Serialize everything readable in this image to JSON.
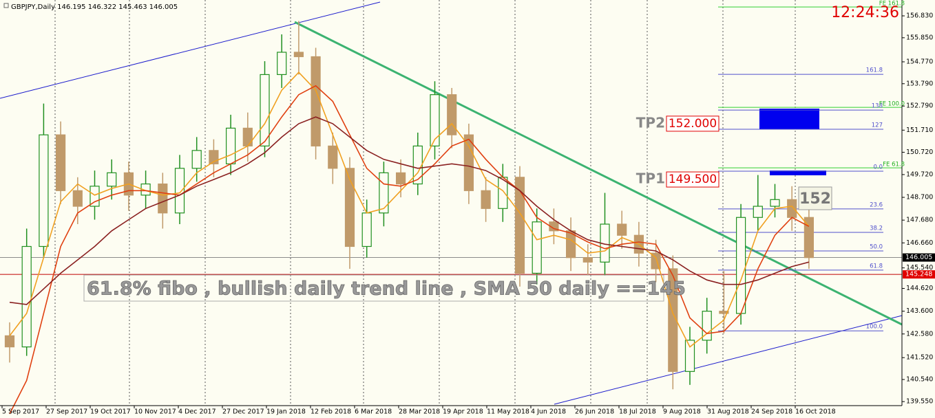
{
  "chart_data": {
    "type": "candlestick",
    "header": "GBPJPY,Daily  146.195 146.322 145.463 146.005",
    "clock": "12:24:36",
    "categories": [
      "5 Sep 2017",
      "27 Sep 2017",
      "19 Oct 2017",
      "10 Nov 2017",
      "4 Dec 2017",
      "27 Dec 2017",
      "19 Jan 2018",
      "12 Feb 2018",
      "6 Mar 2018",
      "28 Mar 2018",
      "19 Apr 2018",
      "11 May 2018",
      "4 Jun 2018",
      "26 Jun 2018",
      "18 Jul 2018",
      "9 Aug 2018",
      "31 Aug 2018",
      "24 Sep 2018",
      "16 Oct 2018"
    ],
    "open": [
      142.5,
      142.0,
      146.5,
      151.5,
      149.0,
      148.3,
      149.2,
      149.8,
      148.8,
      149.3,
      148.0,
      150.0,
      150.8,
      150.2,
      151.8,
      151.0,
      154.2,
      155.2,
      155.0,
      151.0,
      150.0,
      146.5,
      148.0,
      149.8,
      149.3,
      151.0,
      153.3,
      151.5,
      149.0,
      148.2,
      149.6,
      145.3,
      147.6,
      147.2,
      146.0,
      145.8,
      147.5,
      147.0,
      146.2,
      145.5,
      140.9,
      142.3,
      143.6,
      143.5,
      147.8,
      148.3,
      148.6,
      147.8
    ],
    "high": [
      143.1,
      147.3,
      152.9,
      152.1,
      149.6,
      149.9,
      150.4,
      150.3,
      149.9,
      149.8,
      150.6,
      151.4,
      151.3,
      152.4,
      152.5,
      154.8,
      156.0,
      156.6,
      155.4,
      151.6,
      150.5,
      148.6,
      150.3,
      150.4,
      151.6,
      153.9,
      153.6,
      152.0,
      149.6,
      150.2,
      150.1,
      148.2,
      148.2,
      147.8,
      146.6,
      148.9,
      148.1,
      147.6,
      146.8,
      146.1,
      142.9,
      144.2,
      145.4,
      148.4,
      149.7,
      149.3,
      149.2,
      148.4
    ],
    "low": [
      141.3,
      141.6,
      146.0,
      148.4,
      147.5,
      147.7,
      148.6,
      148.1,
      148.2,
      147.3,
      147.5,
      149.4,
      149.6,
      149.7,
      150.3,
      150.5,
      153.6,
      154.2,
      150.4,
      149.3,
      145.5,
      146.0,
      147.4,
      148.7,
      148.8,
      150.4,
      150.9,
      148.4,
      147.6,
      147.6,
      144.7,
      144.8,
      146.6,
      145.4,
      145.2,
      145.2,
      146.4,
      145.6,
      144.9,
      140.1,
      140.3,
      141.7,
      142.6,
      143.0,
      147.2,
      147.8,
      147.2,
      145.5
    ],
    "close": [
      142.0,
      146.5,
      151.5,
      149.0,
      148.3,
      149.2,
      149.8,
      148.8,
      149.3,
      148.0,
      150.0,
      150.8,
      150.2,
      151.8,
      151.0,
      154.2,
      155.2,
      155.0,
      151.0,
      150.0,
      146.5,
      148.0,
      149.8,
      149.3,
      151.0,
      153.3,
      151.5,
      149.0,
      148.2,
      149.6,
      145.3,
      147.6,
      147.2,
      146.0,
      145.8,
      147.5,
      147.0,
      146.2,
      145.5,
      140.9,
      142.3,
      143.6,
      143.5,
      147.8,
      148.3,
      148.6,
      147.8,
      146.0
    ],
    "up_color": "#1f8f1f",
    "down_color": "#c09a6a",
    "moving_averages": [
      {
        "color": "#f0a020",
        "values": [
          142.5,
          143.5,
          146.0,
          148.5,
          149.3,
          148.8,
          149.1,
          149.3,
          149.0,
          148.8,
          148.9,
          149.8,
          150.3,
          150.6,
          151.0,
          152.0,
          153.5,
          154.3,
          153.5,
          151.5,
          149.5,
          148.0,
          148.2,
          149.0,
          149.8,
          151.3,
          152.0,
          151.0,
          149.5,
          149.0,
          148.0,
          146.8,
          147.0,
          146.8,
          146.2,
          146.3,
          146.9,
          146.6,
          146.0,
          143.5,
          142.0,
          142.6,
          143.2,
          145.0,
          147.2,
          148.2,
          148.3,
          147.4
        ]
      },
      {
        "color": "#e04010",
        "values": [
          139.0,
          140.5,
          143.5,
          146.5,
          148.0,
          148.5,
          148.8,
          149.0,
          149.0,
          148.9,
          148.8,
          149.3,
          149.8,
          150.2,
          150.6,
          151.2,
          152.3,
          153.3,
          153.7,
          153.0,
          151.5,
          150.0,
          149.3,
          149.2,
          149.5,
          150.2,
          151.0,
          151.3,
          150.4,
          149.6,
          149.0,
          147.8,
          147.3,
          147.1,
          146.7,
          146.4,
          146.6,
          146.7,
          146.6,
          145.2,
          143.3,
          142.6,
          142.7,
          143.5,
          145.5,
          147.0,
          147.8,
          147.4
        ]
      },
      {
        "color": "#8a2020",
        "values": [
          144.0,
          143.9,
          144.6,
          145.3,
          145.9,
          146.5,
          147.2,
          147.7,
          148.2,
          148.5,
          148.8,
          149.2,
          149.5,
          149.8,
          150.2,
          150.7,
          151.4,
          152.0,
          152.3,
          152.0,
          151.4,
          150.8,
          150.4,
          150.2,
          150.0,
          150.1,
          150.2,
          150.1,
          149.9,
          149.5,
          149.0,
          148.3,
          147.7,
          147.2,
          146.8,
          146.6,
          146.5,
          146.4,
          146.3,
          145.9,
          145.4,
          145.0,
          144.8,
          144.8,
          145.0,
          145.3,
          145.6,
          145.8
        ]
      }
    ],
    "ylim": [
      139.37,
      157.54
    ],
    "yticks": [
      {
        "value": 156.83,
        "label": "156.830"
      },
      {
        "value": 155.85,
        "label": "155.850"
      },
      {
        "value": 154.77,
        "label": "154.770"
      },
      {
        "value": 153.79,
        "label": "153.790"
      },
      {
        "value": 152.79,
        "label": "152.790"
      },
      {
        "value": 151.71,
        "label": "151.710"
      },
      {
        "value": 150.72,
        "label": "150.720"
      },
      {
        "value": 149.72,
        "label": "149.720"
      },
      {
        "value": 148.7,
        "label": "148.700"
      },
      {
        "value": 147.68,
        "label": "147.680"
      },
      {
        "value": 146.66,
        "label": "146.660"
      },
      {
        "value": 145.54,
        "label": "145.540"
      },
      {
        "value": 144.62,
        "label": "144.620"
      },
      {
        "value": 143.6,
        "label": "143.600"
      },
      {
        "value": 142.58,
        "label": "142.580"
      },
      {
        "value": 141.52,
        "label": "141.520"
      },
      {
        "value": 140.54,
        "label": "140.540"
      },
      {
        "value": 139.55,
        "label": "139.550"
      }
    ],
    "current_price": {
      "value": 146.005,
      "label": "146.005"
    },
    "support_line": {
      "value": 145.248,
      "label": "145.248"
    },
    "fib_levels": [
      {
        "label": "161.8",
        "value": 154.21
      },
      {
        "label": "138",
        "value": 152.61
      },
      {
        "label": "127",
        "value": 151.75
      },
      {
        "label": "0.0",
        "value": 149.87
      },
      {
        "label": "23.6",
        "value": 148.18
      },
      {
        "label": "38.2",
        "value": 147.13
      },
      {
        "label": "50.0",
        "value": 146.3
      },
      {
        "label": "61.8",
        "value": 145.44
      },
      {
        "label": "100.0",
        "value": 142.72
      }
    ],
    "fe_levels": [
      {
        "label": "FE 161.8",
        "value": 157.23
      },
      {
        "label": "FE 100.0",
        "value": 152.73
      },
      {
        "label": "FE 61.8",
        "value": 150.02
      }
    ],
    "targets": [
      {
        "name": "TP2",
        "value": 152.0,
        "value_label": "152.000"
      },
      {
        "name": "TP1",
        "value": 149.5,
        "value_label": "149.500"
      }
    ],
    "target_note": "152",
    "annotation": "61.8% fibo , bullish daily trend line , SMA 50 daily  ==145"
  }
}
